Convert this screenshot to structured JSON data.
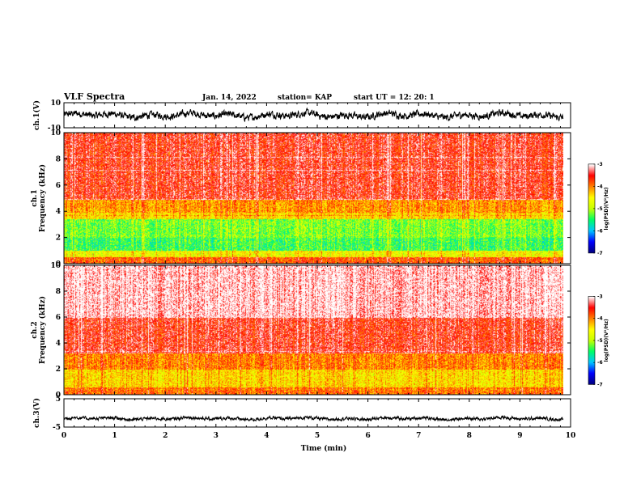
{
  "header": {
    "title": "VLF Spectra",
    "date": "Jan. 14, 2022",
    "station": "station= KAP",
    "start": "start  UT =   12: 20: 1"
  },
  "chart_data": [
    {
      "type": "line",
      "name": "ch1-waveform",
      "ylabel": "ch.1(V)",
      "ylim": [
        -10,
        10
      ],
      "ytick_labels": [
        "10",
        "-10"
      ],
      "xlim": [
        0,
        10
      ],
      "x_extent": [
        0,
        9.85
      ],
      "y_mean": 0,
      "y_typical_range": [
        -6,
        6
      ],
      "color": "#000000"
    },
    {
      "type": "heatmap",
      "name": "ch1-spectrogram",
      "ylabel": "ch.1\nFrequency (kHz)",
      "ylim": [
        0,
        10
      ],
      "ytick_labels": [
        "0",
        "2",
        "4",
        "6",
        "8",
        "10"
      ],
      "xlim": [
        0,
        10
      ],
      "x_extent": [
        0,
        9.85
      ],
      "bands_khz": [
        {
          "from": 0,
          "to": 0.5,
          "level": -3.8
        },
        {
          "from": 0.5,
          "to": 1.0,
          "level": -4.6
        },
        {
          "from": 1.0,
          "to": 2.0,
          "level": -5.4
        },
        {
          "from": 2.0,
          "to": 3.4,
          "level": -5.2
        },
        {
          "from": 3.4,
          "to": 3.9,
          "level": -4.4
        },
        {
          "from": 3.9,
          "to": 4.9,
          "level": -4.1
        },
        {
          "from": 4.9,
          "to": 10.0,
          "level": -3.5
        }
      ],
      "colorbar": {
        "label": "log(PSD)(V²/Hz)",
        "range": [
          -7,
          -3
        ],
        "tick_labels": [
          "-3",
          "-4",
          "-5",
          "-6",
          "-7"
        ]
      }
    },
    {
      "type": "heatmap",
      "name": "ch2-spectrogram",
      "ylabel": "ch.2\nFrequency (kHz)",
      "ylim": [
        0,
        10
      ],
      "ytick_labels": [
        "0",
        "2",
        "4",
        "6",
        "8",
        "10"
      ],
      "xlim": [
        0,
        10
      ],
      "x_extent": [
        0,
        9.85
      ],
      "bands_khz": [
        {
          "from": 0,
          "to": 0.6,
          "level": -3.9
        },
        {
          "from": 0.6,
          "to": 2.0,
          "level": -4.4
        },
        {
          "from": 2.0,
          "to": 3.2,
          "level": -4.0
        },
        {
          "from": 3.2,
          "to": 6.0,
          "level": -3.5
        },
        {
          "from": 6.0,
          "to": 10.0,
          "level": -3.05
        }
      ],
      "colorbar": {
        "label": "log(PSD)(V²/Hz)",
        "range": [
          -7,
          -3
        ],
        "tick_labels": [
          "-3",
          "-4",
          "-5",
          "-6",
          "-7"
        ]
      }
    },
    {
      "type": "line",
      "name": "ch3-waveform",
      "ylabel": "ch.3(V)",
      "ylim": [
        -5,
        5
      ],
      "ytick_labels": [
        "5",
        "-5"
      ],
      "xlim": [
        0,
        10
      ],
      "x_extent": [
        0,
        9.85
      ],
      "y_mean": -2,
      "y_typical_range": [
        -2.6,
        -1.4
      ],
      "color": "#000000"
    }
  ],
  "xaxis": {
    "label": "Time (min)",
    "ticks": [
      0,
      1,
      2,
      3,
      4,
      5,
      6,
      7,
      8,
      9,
      10
    ],
    "tick_labels": [
      "0",
      "1",
      "2",
      "3",
      "4",
      "5",
      "6",
      "7",
      "8",
      "9",
      "10"
    ]
  },
  "colormap": [
    "#000080",
    "#0000ff",
    "#00c8ff",
    "#00ff64",
    "#c8ff00",
    "#ffff00",
    "#ff8000",
    "#ff0000",
    "#ffffff"
  ]
}
